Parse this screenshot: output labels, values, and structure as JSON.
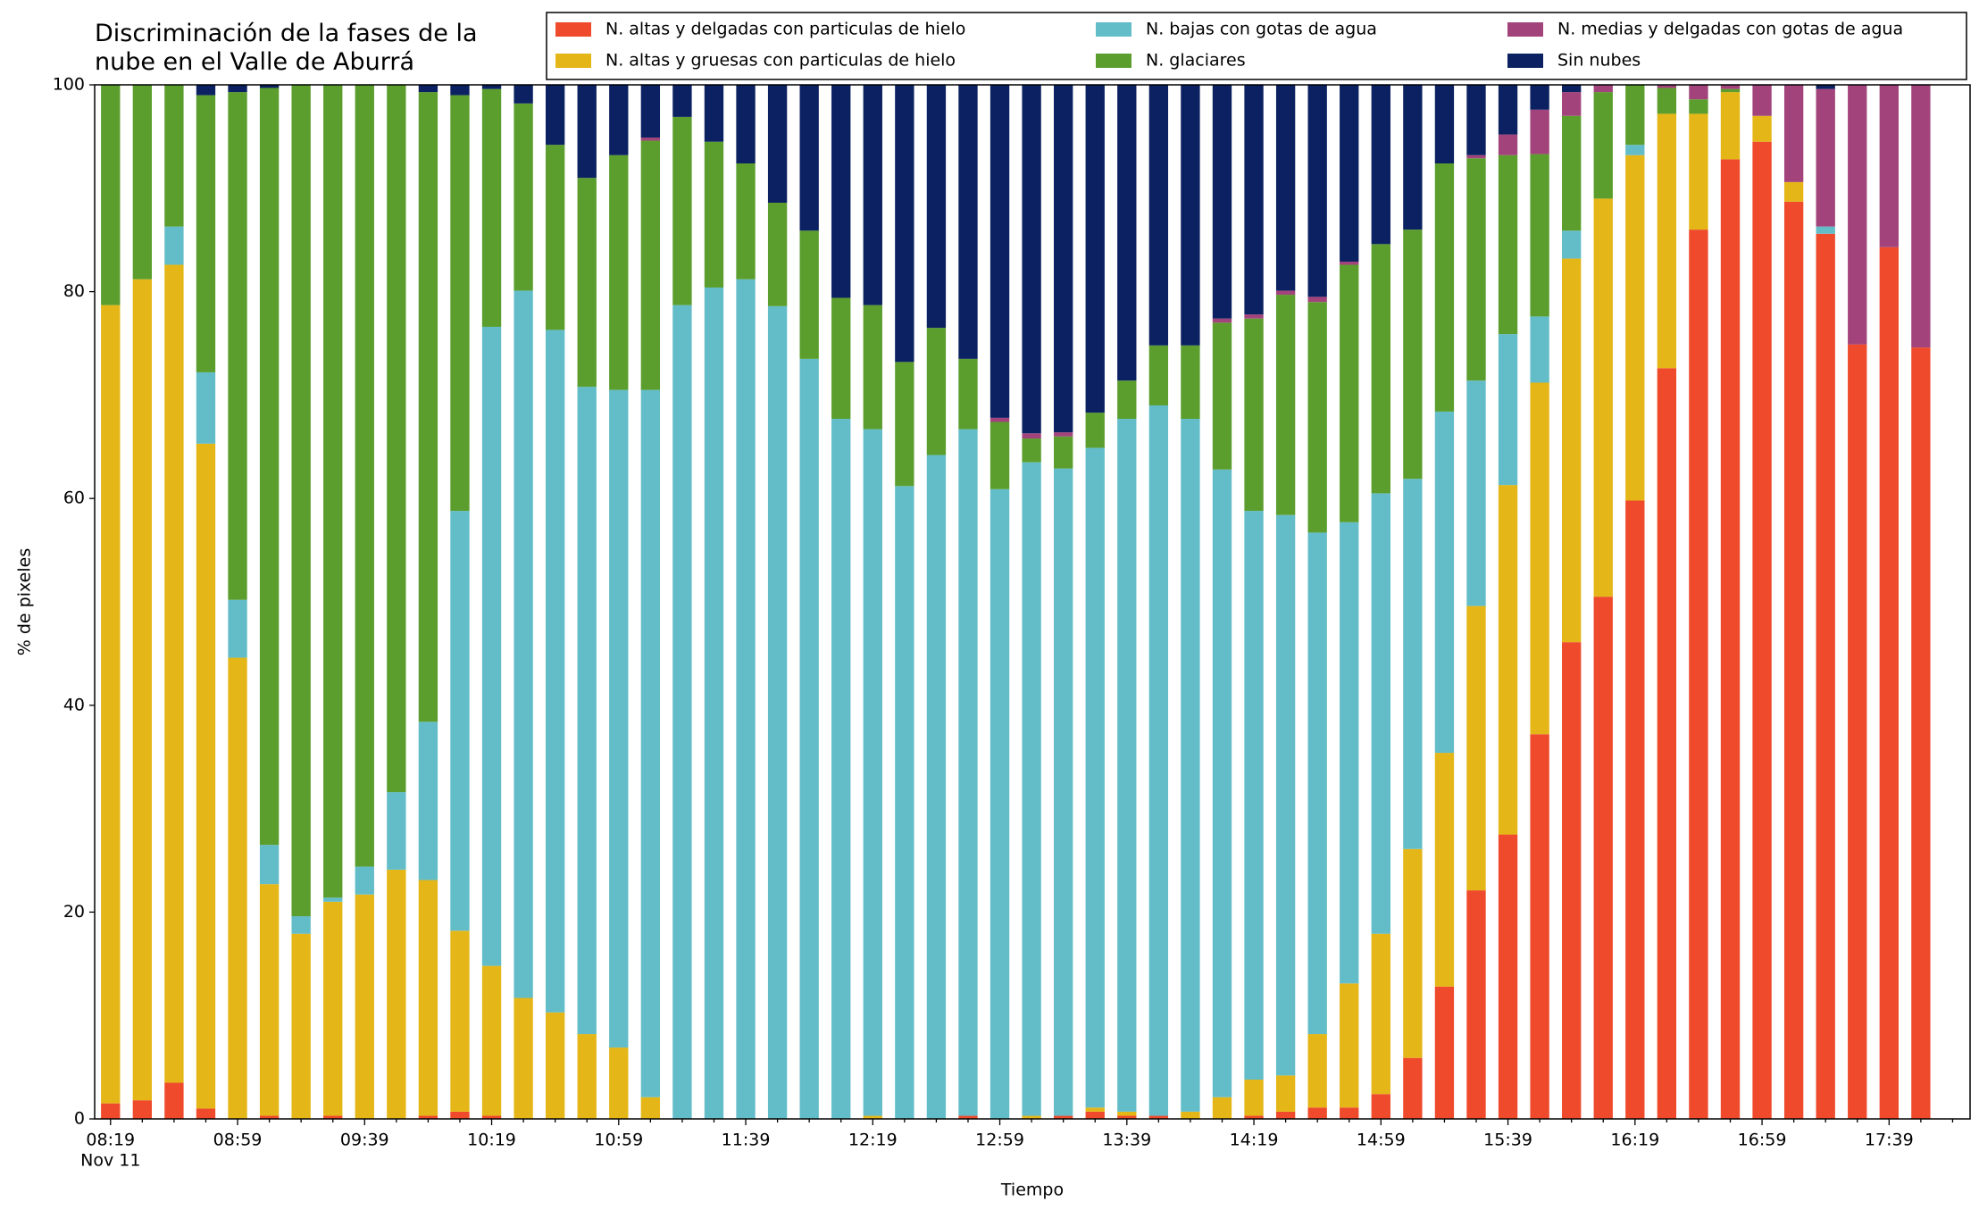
{
  "chart_data": {
    "type": "stacked_bar",
    "title": "Discriminación de la fases de la\nnube en el Valle de Aburrá",
    "x_label": "Tiempo",
    "y_label": "% de pixeles",
    "x_date_label": "Nov 11",
    "categories": [
      "08:19",
      null,
      null,
      null,
      "08:59",
      null,
      null,
      null,
      "09:39",
      null,
      null,
      null,
      "10:19",
      null,
      null,
      null,
      "10:59",
      null,
      null,
      null,
      "11:39",
      null,
      null,
      null,
      "12:19",
      null,
      null,
      null,
      "12:59",
      null,
      null,
      null,
      "13:39",
      null,
      null,
      null,
      "14:19",
      null,
      null,
      null,
      "14:59",
      null,
      null,
      null,
      "15:39",
      null,
      null,
      null,
      "16:19",
      null,
      null,
      null,
      "16:59",
      null,
      null,
      null,
      "17:39",
      null
    ],
    "ylim": [
      0,
      100
    ],
    "yticks": [
      0,
      20,
      40,
      60,
      80,
      100
    ],
    "series": [
      {
        "name": "N. altas y delgadas con particulas de hielo",
        "color": "#ee4a2b",
        "values": [
          1.5,
          1.8,
          3.5,
          1.0,
          0,
          0.3,
          0,
          0.3,
          0,
          0,
          0.3,
          0.7,
          0.3,
          0,
          0,
          0,
          0,
          0,
          0,
          0,
          0,
          0,
          0,
          0,
          0,
          0,
          0,
          0.3,
          0,
          0,
          0.3,
          0.7,
          0.3,
          0.3,
          0,
          0,
          0.3,
          0.7,
          1.1,
          1.1,
          2.4,
          5.9,
          12.8,
          22.1,
          27.5,
          37.2,
          46.1,
          50.5,
          59.8,
          72.6,
          86.0,
          92.8,
          94.5,
          88.7,
          85.6,
          74.9,
          84.3,
          74.6
        ]
      },
      {
        "name": "N. altas y gruesas con particulas de hielo",
        "color": "#e5b617",
        "values": [
          77.2,
          79.4,
          79.1,
          64.3,
          44.6,
          22.4,
          17.9,
          20.7,
          21.7,
          24.1,
          22.8,
          17.5,
          14.5,
          11.7,
          10.3,
          8.2,
          6.9,
          2.1,
          0,
          0,
          0,
          0,
          0,
          0,
          0.3,
          0,
          0,
          0,
          0,
          0.3,
          0,
          0.4,
          0.4,
          0,
          0.7,
          2.1,
          3.5,
          3.5,
          7.1,
          12.0,
          15.5,
          20.2,
          22.6,
          27.5,
          33.8,
          34.0,
          37.1,
          38.5,
          33.4,
          24.6,
          11.2,
          6.5,
          2.5,
          1.9,
          0,
          0,
          0,
          0
        ]
      },
      {
        "name": "N. bajas con gotas de agua",
        "color": "#63bdc9",
        "values": [
          0,
          0,
          3.7,
          6.9,
          5.6,
          3.8,
          1.7,
          0.4,
          2.7,
          7.5,
          15.3,
          40.6,
          61.8,
          68.4,
          66.0,
          62.6,
          63.6,
          68.4,
          78.7,
          80.4,
          81.2,
          78.6,
          73.5,
          67.7,
          66.4,
          61.2,
          64.2,
          66.4,
          60.9,
          63.2,
          62.6,
          63.8,
          67.0,
          68.7,
          67.0,
          60.7,
          55.0,
          54.2,
          48.5,
          44.6,
          42.6,
          35.8,
          33.0,
          21.8,
          14.6,
          6.4,
          2.7,
          0,
          1.0,
          0,
          0,
          0,
          0,
          0,
          0.7,
          0,
          0,
          0
        ]
      },
      {
        "name": "N. glaciares",
        "color": "#5b9e2d",
        "values": [
          21.3,
          18.8,
          13.7,
          26.8,
          49.1,
          73.2,
          80.4,
          78.6,
          75.6,
          68.4,
          60.9,
          40.2,
          23.0,
          18.1,
          17.9,
          20.2,
          22.7,
          24.1,
          18.2,
          14.1,
          11.2,
          10.0,
          12.4,
          11.7,
          12.0,
          12.0,
          12.3,
          6.8,
          6.5,
          2.3,
          3.1,
          3.4,
          3.7,
          5.8,
          7.1,
          14.2,
          18.6,
          21.3,
          22.3,
          24.9,
          24.1,
          24.1,
          24.0,
          21.5,
          17.3,
          15.7,
          11.1,
          10.3,
          5.8,
          2.5,
          1.4,
          0.3,
          0,
          0,
          0,
          0,
          0,
          0
        ]
      },
      {
        "name": "N. medias y delgadas con gotas de agua",
        "color": "#a2447b",
        "values": [
          0,
          0,
          0,
          0,
          0,
          0,
          0,
          0,
          0,
          0,
          0,
          0,
          0,
          0,
          0,
          0,
          0,
          0.3,
          0,
          0,
          0,
          0,
          0,
          0,
          0,
          0,
          0,
          0,
          0.4,
          0.5,
          0.4,
          0,
          0,
          0,
          0,
          0.4,
          0.4,
          0.4,
          0.5,
          0.3,
          0,
          0,
          0,
          0.3,
          2.0,
          4.3,
          2.3,
          0.7,
          0,
          0.3,
          1.4,
          0.4,
          3.0,
          9.4,
          13.3,
          25.1,
          15.7,
          25.4
        ]
      },
      {
        "name": "Sin nubes",
        "color": "#0b2161",
        "values": [
          0,
          0,
          0,
          1.0,
          0.7,
          0.3,
          0,
          0,
          0,
          0,
          0.7,
          1.0,
          0.4,
          1.8,
          5.8,
          9.0,
          6.8,
          5.1,
          3.1,
          5.5,
          7.6,
          11.4,
          14.1,
          20.6,
          21.3,
          26.8,
          23.5,
          26.5,
          32.2,
          33.7,
          33.6,
          31.7,
          28.6,
          25.2,
          25.2,
          22.6,
          22.2,
          19.9,
          20.5,
          17.1,
          15.4,
          14.0,
          7.6,
          6.8,
          4.8,
          2.4,
          0.7,
          0,
          0,
          0,
          0,
          0,
          0,
          0,
          0.4,
          0,
          0,
          0
        ]
      }
    ]
  }
}
